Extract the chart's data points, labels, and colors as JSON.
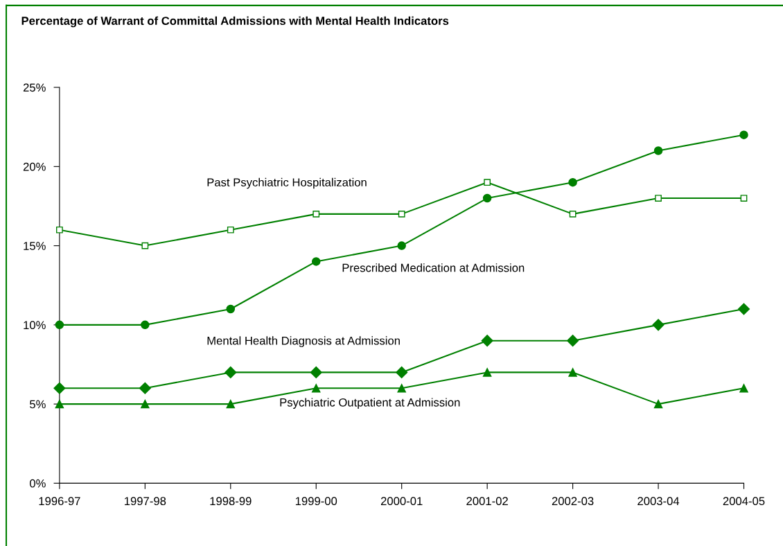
{
  "chart_data": {
    "type": "line",
    "title": "Percentage of Warrant of Committal Admissions with Mental Health Indicators",
    "categories": [
      "1996-97",
      "1997-98",
      "1998-99",
      "1999-00",
      "2000-01",
      "2001-02",
      "2002-03",
      "2003-04",
      "2004-05"
    ],
    "series": [
      {
        "name": "Past Psychiatric Hospitalization",
        "color": "#008000",
        "marker": "square",
        "values": [
          16,
          15,
          16,
          17,
          17,
          19,
          17,
          18,
          18
        ]
      },
      {
        "name": "Prescribed Medication at Admission",
        "color": "#008000",
        "marker": "circle",
        "values": [
          10,
          10,
          11,
          14,
          15,
          18,
          19,
          21,
          22
        ]
      },
      {
        "name": "Mental Health Diagnosis at Admission",
        "color": "#008000",
        "marker": "diamond",
        "values": [
          6,
          6,
          7,
          7,
          7,
          9,
          9,
          10,
          11
        ]
      },
      {
        "name": "Psychiatric Outpatient at Admission",
        "color": "#008000",
        "marker": "triangle",
        "values": [
          5,
          5,
          5,
          6,
          6,
          7,
          7,
          5,
          6
        ]
      }
    ],
    "ylim": [
      0,
      25
    ],
    "yticks": [
      {
        "value": 0,
        "label": "0%"
      },
      {
        "value": 5,
        "label": "5%"
      },
      {
        "value": 10,
        "label": "10%"
      },
      {
        "value": 15,
        "label": "15%"
      },
      {
        "value": 20,
        "label": "20%"
      },
      {
        "value": 25,
        "label": "25%"
      }
    ],
    "grid": false,
    "legend": false,
    "line_style": "solid"
  }
}
